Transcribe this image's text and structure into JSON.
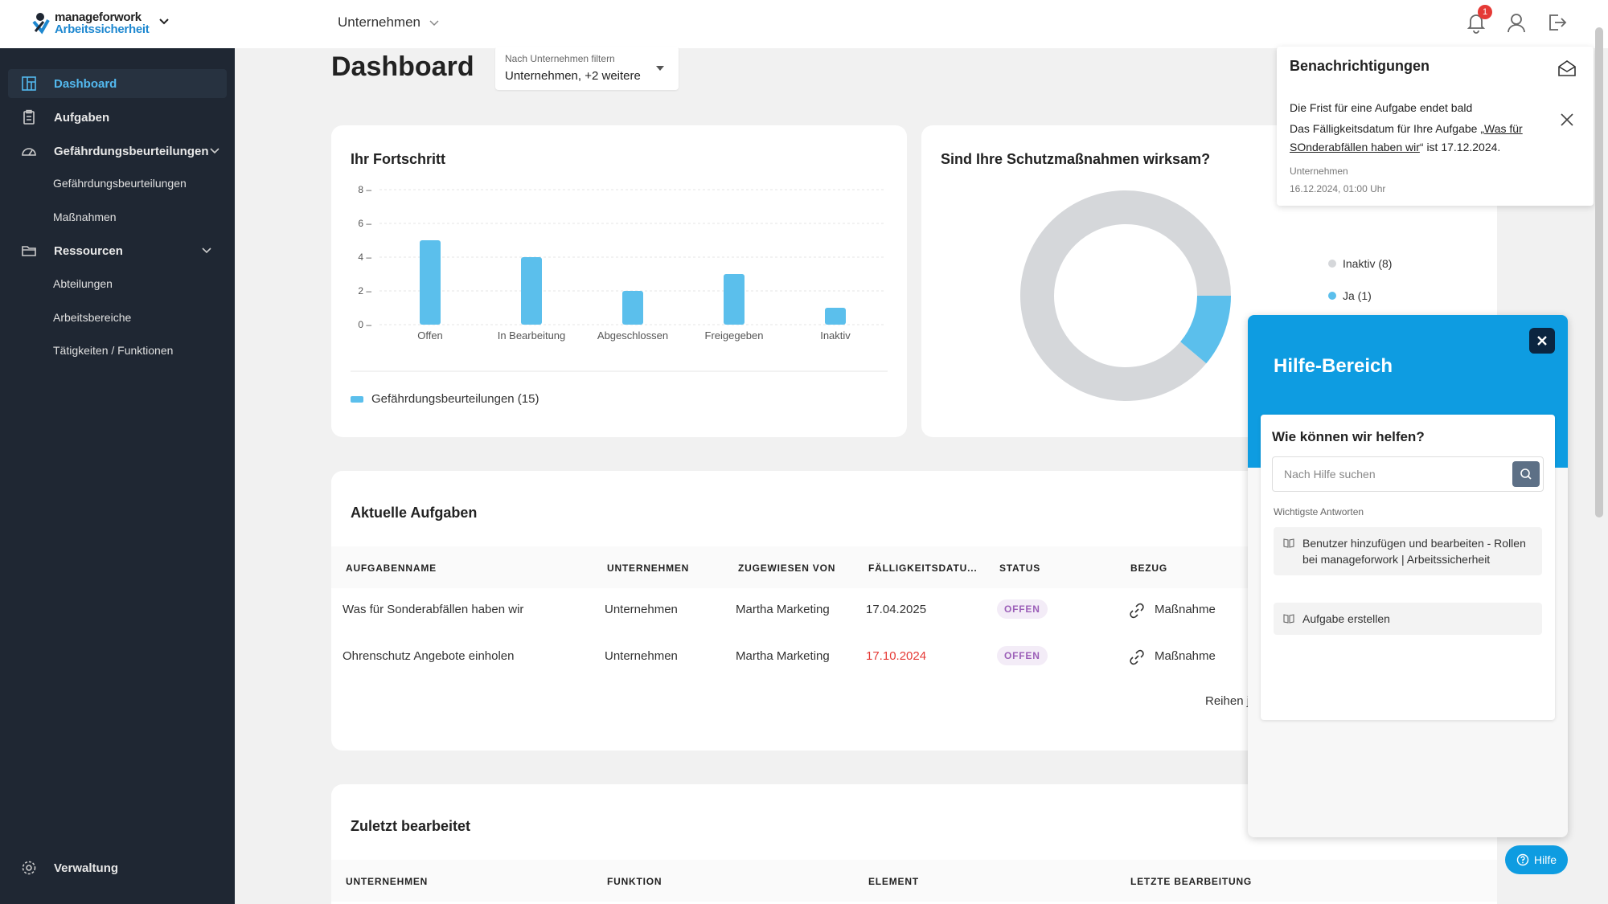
{
  "app": {
    "logo_line1": "manageforwork",
    "logo_line2": "Arbeitssicherheit",
    "company_selector": "Unternehmen",
    "notification_count": "1"
  },
  "sidebar": {
    "dashboard": "Dashboard",
    "aufgaben": "Aufgaben",
    "gefaehrdungsbeurteilungen": "Gefährdungsbeurteilungen",
    "sub_gefaehrdungsbeurteilungen": "Gefährdungsbeurteilungen",
    "sub_massnahmen": "Maßnahmen",
    "ressourcen": "Ressourcen",
    "sub_abteilungen": "Abteilungen",
    "sub_arbeitsbereiche": "Arbeitsbereiche",
    "sub_taetigkeiten": "Tätigkeiten / Funktionen",
    "verwaltung": "Verwaltung"
  },
  "header": {
    "title": "Dashboard",
    "filter_label": "Nach Unternehmen filtern",
    "filter_value": "Unternehmen, +2 weitere"
  },
  "progress_card": {
    "title": "Ihr Fortschritt",
    "legend": "Gefährdungsbeurteilungen (15)"
  },
  "chart_data": {
    "type": "bar",
    "categories": [
      "Offen",
      "In Bearbeitung",
      "Abgeschlossen",
      "Freigegeben",
      "Inaktiv"
    ],
    "values": [
      5,
      4,
      2,
      3,
      1
    ],
    "yticks": [
      0,
      2,
      4,
      6,
      8
    ],
    "ylim": [
      0,
      8
    ],
    "color": "#5bbfec",
    "series": [
      {
        "name": "Gefährdungsbeurteilungen (15)",
        "values": [
          5,
          4,
          2,
          3,
          1
        ]
      }
    ]
  },
  "protection_card": {
    "title": "Sind Ihre Schutzmaßnahmen wirksam?",
    "legend": [
      {
        "label": "Inaktiv (8)",
        "value": 8,
        "color": "#d5d7da"
      },
      {
        "label": "Ja (1)",
        "value": 1,
        "color": "#5bbfec"
      }
    ]
  },
  "tasks": {
    "title": "Aktuelle Aufgaben",
    "columns": [
      "AUFGABENNAME",
      "UNTERNEHMEN",
      "ZUGEWIESEN VON",
      "FÄLLIGKEITSDATU...",
      "STATUS",
      "BEZUG"
    ],
    "rows": [
      {
        "name": "Was für Sonderabfällen haben wir",
        "company": "Unternehmen",
        "assigned_by": "Martha Marketing",
        "due": "17.04.2025",
        "overdue": false,
        "status": "OFFEN",
        "ref": "Maßnahme"
      },
      {
        "name": "Ohrenschutz Angebote einholen",
        "company": "Unternehmen",
        "assigned_by": "Martha Marketing",
        "due": "17.10.2024",
        "overdue": true,
        "status": "OFFEN",
        "ref": "Maßnahme"
      }
    ],
    "pagination": "Reihen j"
  },
  "recent": {
    "title": "Zuletzt bearbeitet",
    "columns": [
      "UNTERNEHMEN",
      "FUNKTION",
      "ELEMENT",
      "LETZTE BEARBEITUNG"
    ]
  },
  "notifications": {
    "title": "Benachrichtigungen",
    "heading": "Die Frist für eine Aufgabe endet bald",
    "body_prefix": "Das Fälligkeitsdatum für Ihre Aufgabe „",
    "body_link": "Was für SOnderabfällen haben wir",
    "body_suffix": "“ ist 17.12.2024.",
    "company": "Unternehmen",
    "timestamp": "16.12.2024, 01:00 Uhr"
  },
  "help": {
    "title": "Hilfe-Bereich",
    "question": "Wie können wir helfen?",
    "search_placeholder": "Nach Hilfe suchen",
    "top_answers_label": "Wichtigste Antworten",
    "answers": [
      "Benutzer hinzufügen und bearbeiten - Rollen bei manageforwork | Arbeitssicherheit",
      "Aufgabe erstellen"
    ],
    "fab_label": "Hilfe"
  }
}
